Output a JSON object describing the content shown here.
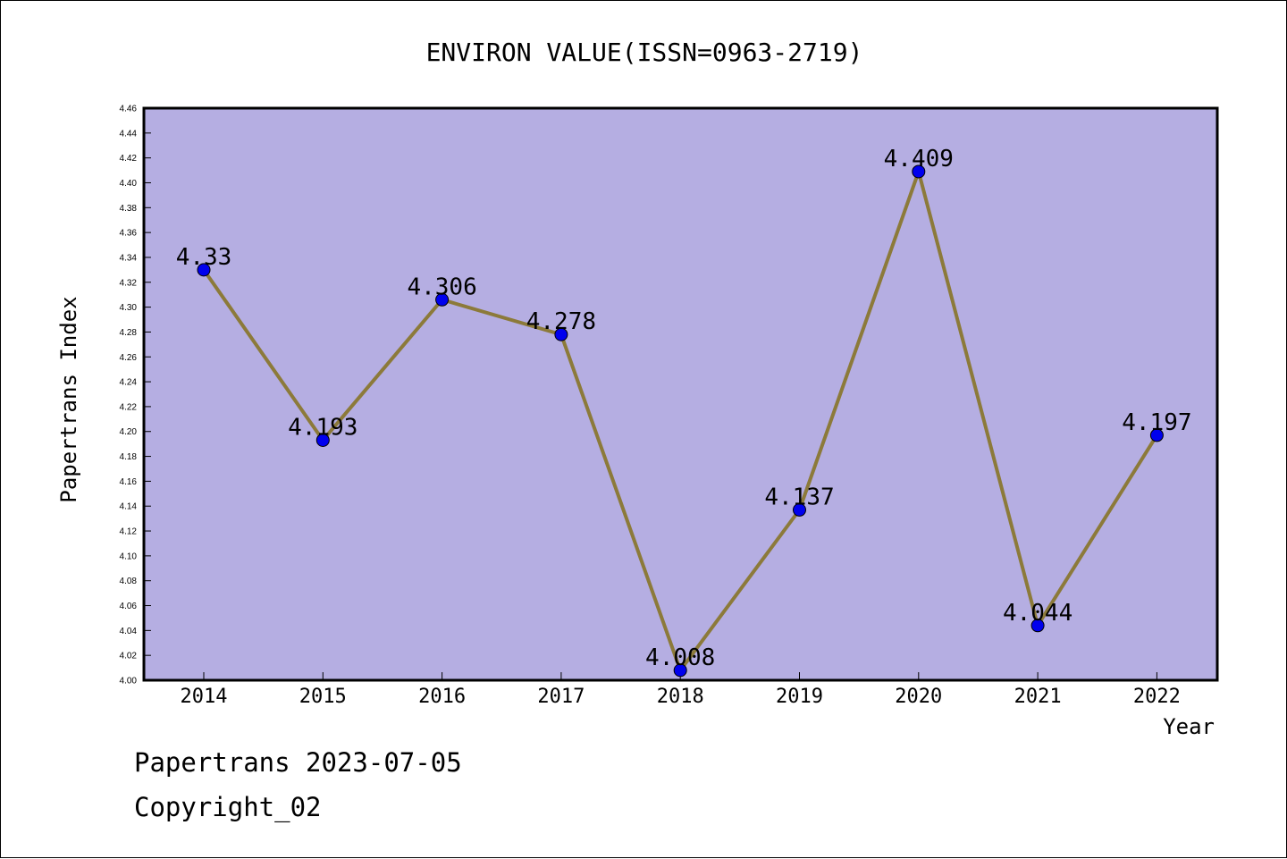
{
  "footer": {
    "line1": "Papertrans 2023-07-05",
    "line2": "Copyright_02"
  },
  "chart_data": {
    "type": "line",
    "title": "ENVIRON VALUE(ISSN=0963-2719)",
    "xlabel": "Year",
    "ylabel": "Papertrans Index",
    "categories": [
      "2014",
      "2015",
      "2016",
      "2017",
      "2018",
      "2019",
      "2020",
      "2021",
      "2022"
    ],
    "series": [
      {
        "values": [
          4.33,
          4.193,
          4.306,
          4.278,
          4.008,
          4.137,
          4.409,
          4.044,
          4.197
        ],
        "labels": [
          "4.33",
          "4.193",
          "4.306",
          "4.278",
          "4.008",
          "4.137",
          "4.409",
          "4.044",
          "4.197"
        ]
      }
    ],
    "ylim": [
      4.0,
      4.46
    ],
    "yticks": [
      "4.00",
      "4.02",
      "4.04",
      "4.06",
      "4.08",
      "4.10",
      "4.12",
      "4.14",
      "4.16",
      "4.18",
      "4.20",
      "4.22",
      "4.24",
      "4.26",
      "4.28",
      "4.30",
      "4.32",
      "4.34",
      "4.36",
      "4.38",
      "4.40",
      "4.42",
      "4.44",
      "4.46"
    ],
    "grid": false,
    "colors": {
      "plot_background": "#b5aee2",
      "line": "#8c7a3a",
      "marker": "#0000ee"
    }
  }
}
